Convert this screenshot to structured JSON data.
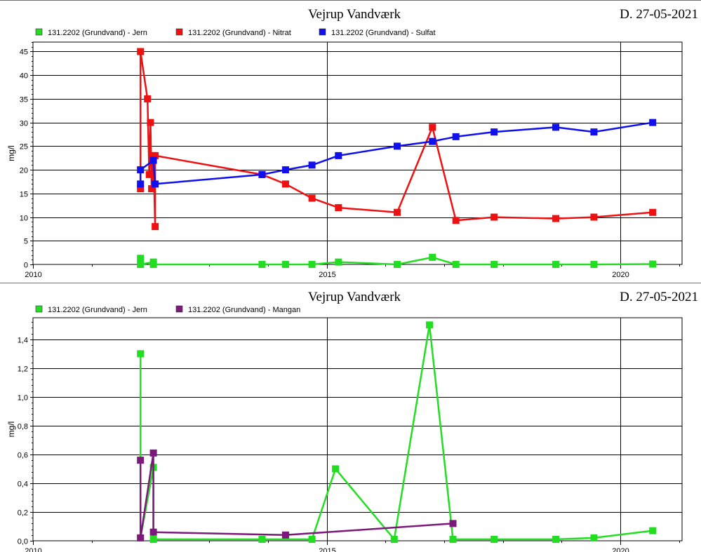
{
  "page": {
    "title": "Vejrup Vandværk",
    "date": "D. 27-05-2021"
  },
  "chart_data": [
    {
      "type": "line",
      "title": "Vejrup Vandværk",
      "date_label": "D. 27-05-2021",
      "ylabel": "mg/l",
      "xlabel": "",
      "x_axis": "year",
      "xlim": [
        2010,
        2021.05
      ],
      "ylim": [
        0,
        47
      ],
      "x_ticks": [
        2010,
        2015,
        2020
      ],
      "x_tick_labels": [
        "2010",
        "2015",
        "2020"
      ],
      "y_ticks": [
        0,
        5,
        10,
        15,
        20,
        25,
        30,
        35,
        40,
        45
      ],
      "y_tick_labels": [
        "0",
        "5",
        "10",
        "15",
        "20",
        "25",
        "30",
        "35",
        "40",
        "45"
      ],
      "grid": true,
      "legend_position": "top-left",
      "series": [
        {
          "name": "131.2202 (Grundvand) - Jern",
          "color": "#22dd22",
          "points": [
            [
              2011.83,
              1.3
            ],
            [
              2011.83,
              0.0
            ],
            [
              2012.05,
              0.5
            ],
            [
              2012.05,
              0.0
            ],
            [
              2013.9,
              0.0
            ],
            [
              2014.3,
              0.0
            ],
            [
              2014.75,
              0.0
            ],
            [
              2015.2,
              0.5
            ],
            [
              2016.2,
              0.0
            ],
            [
              2016.8,
              1.5
            ],
            [
              2017.2,
              0.0
            ],
            [
              2017.85,
              0.0
            ],
            [
              2018.9,
              0.0
            ],
            [
              2019.55,
              0.0
            ],
            [
              2020.55,
              0.07
            ]
          ]
        },
        {
          "name": "131.2202 (Grundvand) - Nitrat",
          "color": "#ee1111",
          "points": [
            [
              2011.83,
              16
            ],
            [
              2011.83,
              45
            ],
            [
              2011.95,
              35
            ],
            [
              2011.98,
              19
            ],
            [
              2012.0,
              30
            ],
            [
              2012.02,
              16
            ],
            [
              2012.05,
              23
            ],
            [
              2012.08,
              8
            ],
            [
              2012.08,
              23
            ],
            [
              2013.9,
              19
            ],
            [
              2014.3,
              17
            ],
            [
              2014.75,
              14
            ],
            [
              2015.2,
              12
            ],
            [
              2016.2,
              11
            ],
            [
              2016.8,
              29
            ],
            [
              2017.2,
              9.3
            ],
            [
              2017.85,
              10
            ],
            [
              2018.9,
              9.7
            ],
            [
              2019.55,
              10
            ],
            [
              2020.55,
              11
            ]
          ]
        },
        {
          "name": "131.2202 (Grundvand) - Sulfat",
          "color": "#1010ee",
          "points": [
            [
              2011.83,
              17
            ],
            [
              2011.83,
              20
            ],
            [
              2012.05,
              22
            ],
            [
              2012.08,
              17
            ],
            [
              2013.9,
              19
            ],
            [
              2014.3,
              20
            ],
            [
              2014.75,
              21
            ],
            [
              2015.2,
              23
            ],
            [
              2016.2,
              25
            ],
            [
              2016.8,
              26
            ],
            [
              2017.2,
              27
            ],
            [
              2017.85,
              28
            ],
            [
              2018.9,
              29
            ],
            [
              2019.55,
              28
            ],
            [
              2020.55,
              30
            ]
          ]
        }
      ]
    },
    {
      "type": "line",
      "title": "Vejrup Vandværk",
      "date_label": "D. 27-05-2021",
      "ylabel": "mg/l",
      "xlabel": "",
      "x_axis": "year",
      "xlim": [
        2010,
        2021.05
      ],
      "ylim": [
        0,
        1.55
      ],
      "x_ticks": [
        2010,
        2015,
        2020
      ],
      "x_tick_labels": [
        "2010",
        "2015",
        "2020"
      ],
      "y_ticks": [
        0,
        0.2,
        0.4,
        0.6,
        0.8,
        1.0,
        1.2,
        1.4
      ],
      "y_tick_labels": [
        "0,0",
        "0,2",
        "0,4",
        "0,6",
        "0,8",
        "1,0",
        "1,2",
        "1,4"
      ],
      "grid": true,
      "legend_position": "top-left",
      "series": [
        {
          "name": "131.2202 (Grundvand) - Jern",
          "color": "#22dd22",
          "points": [
            [
              2011.83,
              1.3
            ],
            [
              2011.83,
              0.02
            ],
            [
              2012.05,
              0.51
            ],
            [
              2012.05,
              0.01
            ],
            [
              2013.9,
              0.01
            ],
            [
              2014.75,
              0.01
            ],
            [
              2015.15,
              0.5
            ],
            [
              2016.15,
              0.01
            ],
            [
              2016.75,
              1.5
            ],
            [
              2017.15,
              0.01
            ],
            [
              2017.85,
              0.01
            ],
            [
              2018.9,
              0.01
            ],
            [
              2019.55,
              0.02
            ],
            [
              2020.55,
              0.07
            ]
          ]
        },
        {
          "name": "131.2202 (Grundvand) - Mangan",
          "color": "#7b1a7b",
          "points": [
            [
              2011.83,
              0.56
            ],
            [
              2011.83,
              0.02
            ],
            [
              2012.05,
              0.61
            ],
            [
              2012.05,
              0.06
            ],
            [
              2014.3,
              0.04
            ],
            [
              2017.15,
              0.12
            ]
          ]
        }
      ]
    }
  ]
}
